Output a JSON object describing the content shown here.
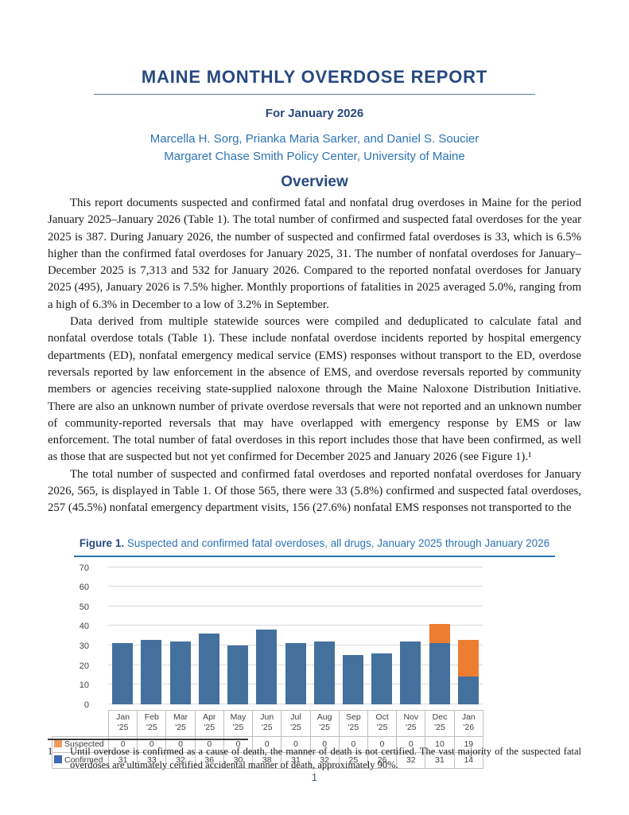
{
  "header": {
    "title": "MAINE MONTHLY OVERDOSE REPORT",
    "subtitle": "For January 2026",
    "authors_line1": "Marcella H. Sorg, Prianka Maria Sarker, and Daniel S. Soucier",
    "authors_line2": "Margaret Chase Smith Policy Center, University of Maine"
  },
  "overview": {
    "heading": "Overview",
    "paragraphs": [
      "This report documents suspected and confirmed fatal and nonfatal drug overdoses in Maine for the period January 2025–January 2026 (Table 1). The total number of confirmed and suspected fatal overdoses for the year 2025 is 387. During January 2026, the number of suspected and confirmed fatal overdoses is 33, which is 6.5% higher than the confirmed fatal overdoses for January 2025, 31. The number of nonfatal overdoses for January–December 2025 is 7,313 and 532 for January 2026. Compared to the reported nonfatal overdoses for January 2025 (495), January 2026 is 7.5% higher. Monthly proportions of fatalities in 2025 averaged 5.0%, ranging from a high of 6.3% in December to a low of 3.2% in September.",
      "Data derived from multiple statewide sources were compiled and deduplicated to calculate fatal and nonfatal overdose totals (Table 1). These include nonfatal overdose incidents reported by hospital emergency departments (ED), nonfatal emergency medical service (EMS) responses without transport to the ED, overdose reversals reported by law enforcement in the absence of EMS, and overdose reversals reported by community members or agencies receiving state-supplied naloxone through the Maine Naloxone Distribution Initiative. There are also an unknown number of private overdose reversals that were not reported and an unknown number of community-reported reversals that may have overlapped with emergency response by EMS or law enforcement. The total number of fatal overdoses in this report includes those that have been confirmed, as well as those that are suspected but not yet confirmed for December 2025 and January 2026 (see Figure 1).¹",
      "The total number of suspected and confirmed fatal overdoses and reported nonfatal overdoses for January 2026, 565, is displayed in Table 1. Of those 565, there were 33 (5.8%) confirmed and suspected fatal overdoses, 257 (45.5%) nonfatal emergency department visits, 156 (27.6%) nonfatal EMS responses not transported to the"
    ]
  },
  "figure": {
    "label": "Figure 1.",
    "caption_rest": " Suspected and confirmed fatal overdoses, all drugs, January 2025 through January 2026"
  },
  "chart_data": {
    "type": "bar",
    "stacked": true,
    "title": "Figure 1. Suspected and confirmed fatal overdoses, all drugs, January 2025 through January 2026",
    "categories": [
      "Jan '25",
      "Feb '25",
      "Mar '25",
      "Apr '25",
      "May '25",
      "Jun '25",
      "Jul '25",
      "Aug '25",
      "Sep '25",
      "Oct '25",
      "Nov '25",
      "Dec '25",
      "Jan '26"
    ],
    "series": [
      {
        "name": "Suspected",
        "color": "#ED7D31",
        "legend_swatch": "#F19A5F",
        "values": [
          0,
          0,
          0,
          0,
          0,
          0,
          0,
          0,
          0,
          0,
          0,
          10,
          19
        ]
      },
      {
        "name": "Confirmed",
        "color": "#44709E",
        "legend_swatch": "#3D68B1",
        "values": [
          31,
          33,
          32,
          36,
          30,
          38,
          31,
          32,
          25,
          26,
          32,
          31,
          14
        ]
      }
    ],
    "stack_order_top_to_bottom": [
      "Suspected",
      "Confirmed"
    ],
    "ylim": [
      0,
      70
    ],
    "yticks": [
      0,
      10,
      20,
      30,
      40,
      50,
      60,
      70
    ],
    "grid": "horizontal",
    "legend_position": "table-left-column",
    "gridline_color": "#D9D9D9"
  },
  "footnote": {
    "number": "1",
    "text": "Until overdose is confirmed as a cause of death, the manner of death is not certified. The vast majority of the suspected fatal overdoses are ultimately certified accidental manner of death, approximately 90%."
  },
  "page": {
    "number": "1"
  }
}
